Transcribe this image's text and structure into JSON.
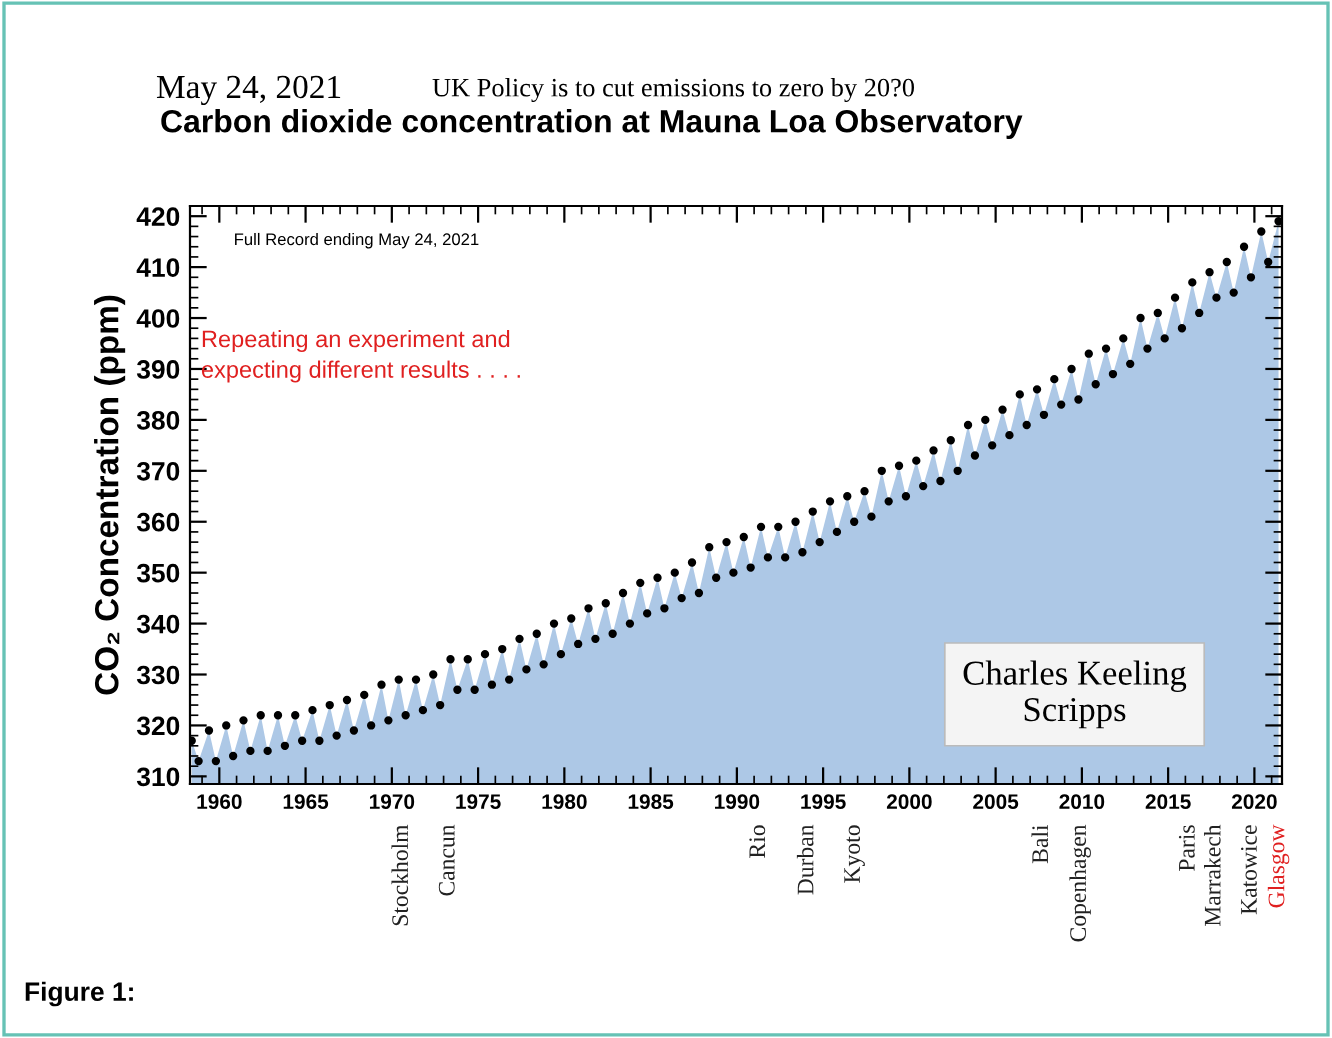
{
  "chart_data": {
    "type": "scatter",
    "title": "Carbon dioxide concentration at Mauna Loa Observatory",
    "ylabel": "CO₂ Concentration (ppm)",
    "x": [
      1958.4,
      1958.8,
      1959.4,
      1959.8,
      1960.4,
      1960.8,
      1961.4,
      1961.8,
      1962.4,
      1962.8,
      1963.4,
      1963.8,
      1964.4,
      1964.8,
      1965.4,
      1965.8,
      1966.4,
      1966.8,
      1967.4,
      1967.8,
      1968.4,
      1968.8,
      1969.4,
      1969.8,
      1970.4,
      1970.8,
      1971.4,
      1971.8,
      1972.4,
      1972.8,
      1973.4,
      1973.8,
      1974.4,
      1974.8,
      1975.4,
      1975.8,
      1976.4,
      1976.8,
      1977.4,
      1977.8,
      1978.4,
      1978.8,
      1979.4,
      1979.8,
      1980.4,
      1980.8,
      1981.4,
      1981.8,
      1982.4,
      1982.8,
      1983.4,
      1983.8,
      1984.4,
      1984.8,
      1985.4,
      1985.8,
      1986.4,
      1986.8,
      1987.4,
      1987.8,
      1988.4,
      1988.8,
      1989.4,
      1989.8,
      1990.4,
      1990.8,
      1991.4,
      1991.8,
      1992.4,
      1992.8,
      1993.4,
      1993.8,
      1994.4,
      1994.8,
      1995.4,
      1995.8,
      1996.4,
      1996.8,
      1997.4,
      1997.8,
      1998.4,
      1998.8,
      1999.4,
      1999.8,
      2000.4,
      2000.8,
      2001.4,
      2001.8,
      2002.4,
      2002.8,
      2003.4,
      2003.8,
      2004.4,
      2004.8,
      2005.4,
      2005.8,
      2006.4,
      2006.8,
      2007.4,
      2007.8,
      2008.4,
      2008.8,
      2009.4,
      2009.8,
      2010.4,
      2010.8,
      2011.4,
      2011.8,
      2012.4,
      2012.8,
      2013.4,
      2013.8,
      2014.4,
      2014.8,
      2015.4,
      2015.8,
      2016.4,
      2016.8,
      2017.4,
      2017.8,
      2018.4,
      2018.8,
      2019.4,
      2019.8,
      2020.4,
      2020.8,
      2021.4
    ],
    "series": [
      {
        "type": "area",
        "color": "#adc8e6",
        "values": [
          317,
          313,
          319,
          313,
          320,
          314,
          321,
          315,
          322,
          315,
          322,
          316,
          322,
          317,
          323,
          317,
          324,
          318,
          325,
          319,
          326,
          320,
          328,
          321,
          329,
          322,
          329,
          323,
          330,
          324,
          333,
          327,
          333,
          327,
          334,
          328,
          335,
          329,
          337,
          331,
          338,
          332,
          340,
          334,
          341,
          336,
          343,
          337,
          344,
          338,
          346,
          340,
          348,
          342,
          349,
          343,
          350,
          345,
          352,
          346,
          355,
          349,
          356,
          350,
          357,
          351,
          359,
          353,
          359,
          353,
          360,
          354,
          362,
          356,
          364,
          358,
          365,
          360,
          366,
          361,
          370,
          364,
          371,
          365,
          372,
          367,
          374,
          368,
          376,
          370,
          379,
          373,
          380,
          375,
          382,
          377,
          385,
          379,
          386,
          381,
          388,
          383,
          390,
          384,
          393,
          387,
          394,
          389,
          396,
          391,
          400,
          394,
          401,
          396,
          404,
          398,
          407,
          401,
          409,
          404,
          411,
          405,
          414,
          408,
          417,
          411,
          419
        ]
      },
      {
        "color": "#000000",
        "marker": "circle",
        "values": [
          317,
          313,
          319,
          313,
          320,
          314,
          321,
          315,
          322,
          315,
          322,
          316,
          322,
          317,
          323,
          317,
          324,
          318,
          325,
          319,
          326,
          320,
          328,
          321,
          329,
          322,
          329,
          323,
          330,
          324,
          333,
          327,
          333,
          327,
          334,
          328,
          335,
          329,
          337,
          331,
          338,
          332,
          340,
          334,
          341,
          336,
          343,
          337,
          344,
          338,
          346,
          340,
          348,
          342,
          349,
          343,
          350,
          345,
          352,
          346,
          355,
          349,
          356,
          350,
          357,
          351,
          359,
          353,
          359,
          353,
          360,
          354,
          362,
          356,
          364,
          358,
          365,
          360,
          366,
          361,
          370,
          364,
          371,
          365,
          372,
          367,
          374,
          368,
          376,
          370,
          379,
          373,
          380,
          375,
          382,
          377,
          385,
          379,
          386,
          381,
          388,
          383,
          390,
          384,
          393,
          387,
          394,
          389,
          396,
          391,
          400,
          394,
          401,
          396,
          404,
          398,
          407,
          401,
          409,
          404,
          411,
          405,
          414,
          408,
          417,
          411,
          419
        ]
      }
    ],
    "xlim": [
      1958.3,
      2021.6
    ],
    "xticks": [
      1960,
      1965,
      1970,
      1975,
      1980,
      1985,
      1990,
      1995,
      2000,
      2005,
      2010,
      2015,
      2020
    ],
    "ylim": [
      308.5,
      422
    ],
    "yticks": [
      310,
      320,
      330,
      340,
      350,
      360,
      370,
      380,
      390,
      400,
      410,
      420
    ],
    "grid": false,
    "annotations": [
      "May 24, 2021",
      "UK Policy is to cut emissions to zero by 20?0",
      "Full Record ending May 24, 2021",
      "Repeating an experiment and\nexpecting different results . . . .",
      "Charles Keeling\nScripps",
      "Figure 1:",
      "Stockholm",
      "Cancun",
      "Rio",
      "Durban",
      "Kyoto",
      "Bali",
      "Copenhagen",
      "Paris",
      "Marrakech",
      "Katowice",
      "Glasgow"
    ]
  }
}
